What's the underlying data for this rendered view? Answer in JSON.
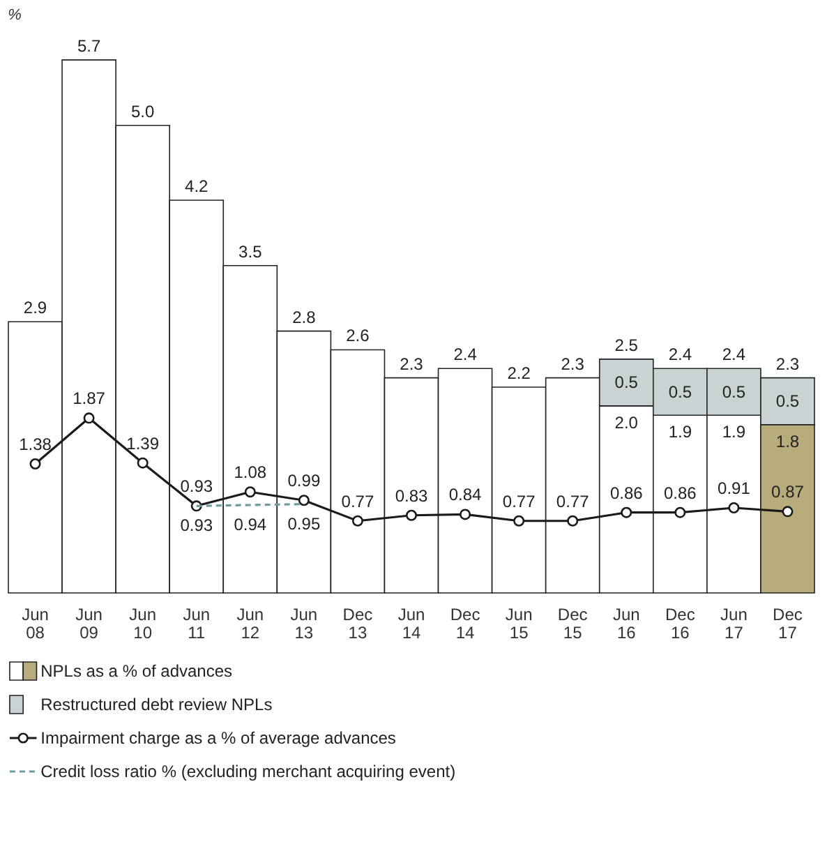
{
  "chart_data": {
    "type": "bar",
    "ylabel": "%",
    "categories": [
      "Jun 08",
      "Jun 09",
      "Jun 10",
      "Jun 11",
      "Jun 12",
      "Jun 13",
      "Dec 13",
      "Jun 14",
      "Dec 14",
      "Jun 15",
      "Dec 15",
      "Jun 16",
      "Dec 16",
      "Jun 17",
      "Dec 17"
    ],
    "stacked": true,
    "data_labels": true,
    "legend": "bottom",
    "tick_labels": "x",
    "series": [
      {
        "name": "NPLs as a % of advances",
        "type": "bar",
        "color": "#ffffff",
        "colors": [
          "#ffffff",
          "#ffffff",
          "#ffffff",
          "#ffffff",
          "#ffffff",
          "#ffffff",
          "#ffffff",
          "#ffffff",
          "#ffffff",
          "#ffffff",
          "#ffffff",
          "#ffffff",
          "#ffffff",
          "#ffffff",
          "#b8ab7c"
        ],
        "values": [
          2.9,
          5.7,
          5.0,
          4.2,
          3.5,
          2.8,
          2.6,
          2.3,
          2.4,
          2.2,
          2.3,
          2.0,
          1.9,
          1.9,
          1.8
        ],
        "value_labels": [
          "2.9",
          "5.7",
          "5.0",
          "4.2",
          "3.5",
          "2.8",
          "2.6",
          "2.3",
          "2.4",
          "2.2",
          "2.3",
          "2.0",
          "1.9",
          "1.9",
          "1.8"
        ]
      },
      {
        "name": "Restructured debt review NPLs",
        "type": "bar",
        "color": "#c9d3d3",
        "values": [
          null,
          null,
          null,
          null,
          null,
          null,
          null,
          null,
          null,
          null,
          null,
          0.5,
          0.5,
          0.5,
          0.5
        ]
      },
      {
        "name": "Impairment charge as a % of average advances",
        "type": "line",
        "color": "#1a1a1a",
        "marker": "circle",
        "line_style": "solid",
        "values": [
          1.38,
          1.87,
          1.39,
          0.93,
          1.08,
          0.99,
          0.77,
          0.83,
          0.84,
          0.77,
          0.77,
          0.86,
          0.86,
          0.91,
          0.87
        ]
      },
      {
        "name": "Credit loss ratio % (excluding merchant acquiring event)",
        "type": "line",
        "color": "#6e9c9c",
        "line_style": "dashed",
        "values": [
          null,
          null,
          null,
          0.93,
          0.94,
          0.95,
          null,
          null,
          null,
          null,
          null,
          null,
          null,
          null,
          null
        ]
      }
    ],
    "totals": [
      null,
      null,
      null,
      null,
      null,
      null,
      null,
      null,
      null,
      null,
      null,
      "2.5",
      "2.4",
      "2.4",
      "2.3"
    ]
  }
}
